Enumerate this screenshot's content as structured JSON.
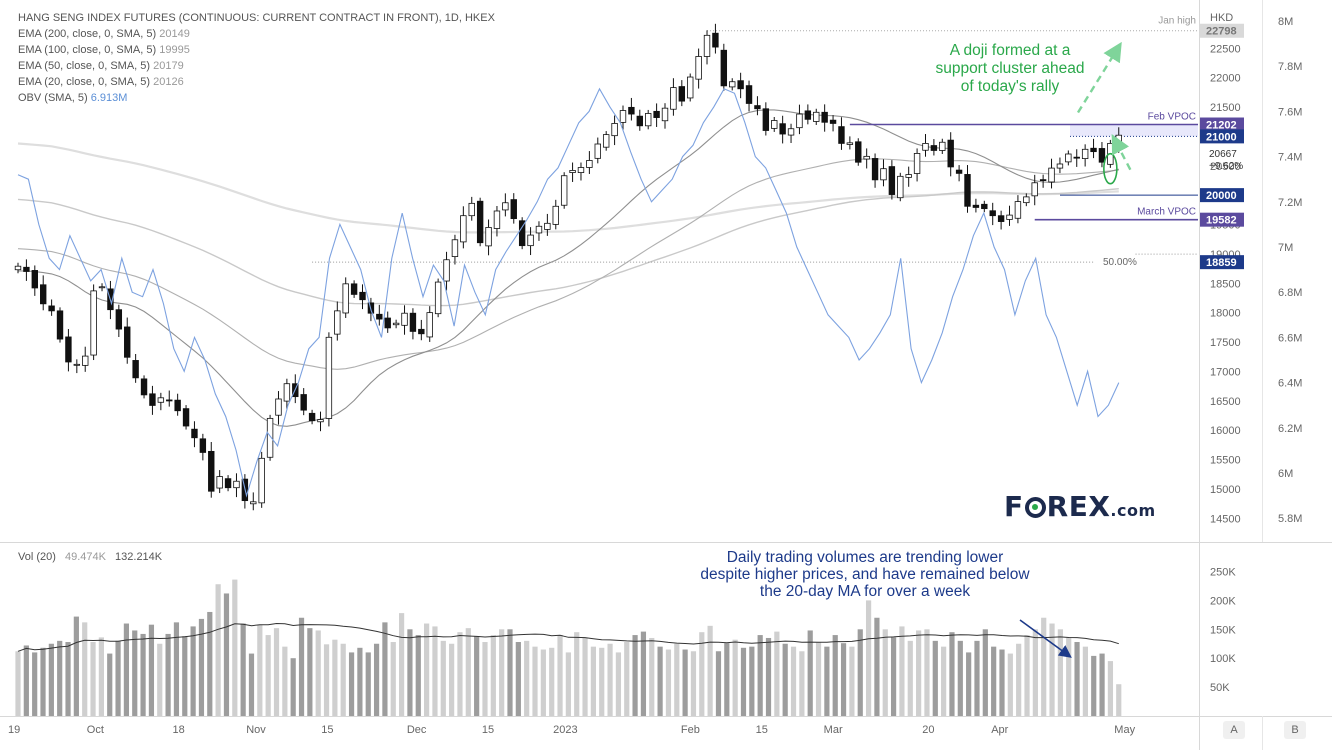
{
  "chart_data": {
    "type": "candlestick",
    "title": "HANG SENG INDEX FUTURES (CONTINUOUS: CURRENT CONTRACT IN FRONT), 1D, HKEX",
    "indicators": [
      {
        "label": "EMA (200, close, 0, SMA, 5)",
        "value": "20149"
      },
      {
        "label": "EMA (100, close, 0, SMA, 5)",
        "value": "19995"
      },
      {
        "label": "EMA (50, close, 0, SMA, 5)",
        "value": "20179"
      },
      {
        "label": "EMA (20, close, 0, SMA, 5)",
        "value": "20126"
      },
      {
        "label": "OBV (SMA, 5)",
        "value": "6.913M",
        "color": "#5b8fd6"
      }
    ],
    "price_axis": {
      "currency": "HKD",
      "ticks": [
        14500,
        15000,
        15500,
        16000,
        16500,
        17000,
        17500,
        18000,
        18500,
        19000,
        19500,
        20000,
        20500,
        21000,
        21500,
        22000,
        22500
      ],
      "tick_labels": [
        "14500",
        "15000",
        "15500",
        "16000",
        "16500",
        "17000",
        "17500",
        "18000",
        "18500",
        "19000",
        "19500",
        "20000",
        "20500",
        "21000",
        "21500",
        "22000",
        "22500"
      ],
      "range": [
        14300,
        23000
      ]
    },
    "obv_axis": {
      "ticks": [
        5.8,
        6.0,
        6.2,
        6.4,
        6.6,
        6.8,
        7.0,
        7.2,
        7.4,
        7.6,
        7.8,
        8.0
      ],
      "tick_labels": [
        "5.8M",
        "6M",
        "6.2M",
        "6.4M",
        "6.6M",
        "6.8M",
        "7M",
        "7.2M",
        "7.4M",
        "7.6M",
        "7.8M",
        "8M"
      ],
      "range": [
        5.73,
        8.0
      ]
    },
    "volume_axis": {
      "tick_labels": [
        "50K",
        "100K",
        "150K",
        "200K",
        "250K"
      ],
      "ticks": [
        50,
        100,
        150,
        200,
        250
      ],
      "range": [
        0,
        275
      ]
    },
    "x_axis": {
      "labels": [
        "19",
        "Oct",
        "18",
        "Nov",
        "15",
        "Dec",
        "15",
        "2023",
        "Feb",
        "15",
        "Mar",
        "20",
        "Apr",
        "May"
      ],
      "bar_index": [
        0,
        13,
        27,
        40,
        52,
        67,
        79,
        92,
        113,
        125,
        137,
        153,
        165,
        186
      ]
    },
    "price_labels": [
      {
        "name": "Jan high",
        "value": 22798,
        "color": "#bbbbbb"
      },
      {
        "name": "Feb VPOC",
        "value": 21202,
        "color": "#5b4a9e"
      },
      {
        "name": "",
        "value": 21000,
        "color": "#1d3a8a"
      },
      {
        "name": "",
        "value": 20667,
        "change": "+9.62%",
        "color": ""
      },
      {
        "name": "",
        "value": 20000,
        "color": "#1d3a8a"
      },
      {
        "name": "March VPOC",
        "value": 19582,
        "color": "#5b4a9e"
      },
      {
        "name": "50.00%",
        "value": 18859,
        "color": "#1d3a8a"
      }
    ],
    "volume_legend": {
      "label": "Vol (20)",
      "v1": "49.474K",
      "v2": "132.214K"
    },
    "annotations": {
      "green": "A doji formed at a support cluster ahead of today's rally",
      "blue": "Daily trading volumes are trending lower despite higher prices, and have remained below the 20-day MA for over a week"
    },
    "closes": [
      18790,
      18700,
      18420,
      18150,
      18030,
      17550,
      17160,
      17120,
      17260,
      18370,
      18440,
      18050,
      17720,
      17240,
      16890,
      16600,
      16420,
      16550,
      16510,
      16330,
      16070,
      15870,
      15620,
      14960,
      15210,
      15020,
      15130,
      14800,
      14780,
      15520,
      16200,
      16530,
      16790,
      16570,
      16340,
      16160,
      16180,
      17580,
      18030,
      18490,
      18310,
      18220,
      17990,
      17890,
      17740,
      17820,
      17990,
      17680,
      17640,
      18000,
      18520,
      18900,
      19240,
      19650,
      19860,
      19190,
      19450,
      19730,
      19870,
      19600,
      19140,
      19320,
      19470,
      19520,
      19810,
      20330,
      20420,
      20470,
      20590,
      20870,
      21030,
      21220,
      21440,
      21380,
      21180,
      21390,
      21320,
      21480,
      21830,
      21600,
      22010,
      22360,
      22720,
      22520,
      21860,
      21930,
      21810,
      21560,
      21470,
      21100,
      21270,
      21040,
      21130,
      21380,
      21290,
      21410,
      21240,
      21220,
      20880,
      20890,
      20560,
      20660,
      20260,
      20450,
      20010,
      20320,
      20350,
      20710,
      20880,
      20760,
      20900,
      20480,
      20370,
      19810,
      19790,
      19770,
      19650,
      19550,
      19660,
      19890,
      19970,
      20210,
      20260,
      20460,
      20530,
      20700,
      20640,
      20780,
      20740,
      20560,
      20880,
      21020
    ],
    "obv": [
      7.32,
      7.3,
      7.1,
      6.95,
      6.9,
      7.05,
      6.95,
      6.85,
      6.9,
      6.75,
      6.95,
      6.8,
      6.78,
      6.9,
      6.75,
      6.55,
      6.45,
      6.6,
      6.5,
      6.35,
      6.25,
      6.1,
      5.9,
      6.05,
      6.18,
      6.12,
      6.3,
      6.4,
      6.55,
      6.6,
      6.95,
      7.1,
      7.0,
      6.9,
      6.72,
      6.6,
      6.95,
      7.15,
      6.95,
      6.78,
      6.92,
      6.85,
      6.65,
      6.92,
      6.8,
      6.7,
      6.9,
      6.98,
      7.05,
      7.12,
      7.2,
      7.3,
      7.35,
      7.45,
      7.55,
      7.6,
      7.7,
      7.62,
      7.55,
      7.42,
      7.3,
      7.2,
      7.25,
      7.3,
      7.4,
      7.45,
      7.55,
      7.62,
      7.7,
      7.68,
      7.55,
      7.4,
      7.35,
      7.25,
      7.15,
      7.0,
      6.9,
      6.8,
      6.7,
      6.65,
      6.6,
      6.5,
      6.55,
      6.62,
      6.7,
      6.95,
      6.55,
      6.4,
      6.5,
      6.62,
      6.78,
      6.9,
      7.05,
      7.15,
      7.0,
      6.9,
      6.7,
      6.85,
      6.95,
      6.7,
      6.6,
      6.45,
      6.3,
      6.45,
      6.25,
      6.3,
      6.4
    ],
    "volumes": [
      112,
      122,
      110,
      118,
      125,
      130,
      128,
      172,
      162,
      128,
      136,
      108,
      130,
      160,
      148,
      142,
      158,
      125,
      142,
      162,
      138,
      155,
      168,
      180,
      228,
      212,
      236,
      160,
      108,
      158,
      140,
      152,
      120,
      100,
      170,
      152,
      148,
      124,
      132,
      125,
      110,
      118,
      110,
      125,
      162,
      128,
      178,
      150,
      140,
      160,
      155,
      130,
      125,
      145,
      152,
      138,
      128,
      140,
      150,
      150,
      128,
      130,
      120,
      115,
      118,
      140,
      110,
      145,
      135,
      120,
      118,
      125,
      110,
      128,
      140,
      146,
      135,
      120,
      115,
      125,
      115,
      112,
      145,
      156,
      112,
      126,
      132,
      118,
      120,
      140,
      135,
      146,
      125,
      120,
      112,
      148,
      128,
      120,
      140,
      126,
      120,
      150,
      200,
      170,
      150,
      136,
      155,
      130,
      148,
      150,
      130,
      120,
      145,
      130,
      110,
      130,
      150,
      120,
      115,
      108,
      125,
      140,
      150,
      170,
      160,
      150,
      135,
      128,
      120,
      104,
      108,
      95,
      55
    ]
  },
  "controls": {
    "a": "A",
    "b": "B"
  }
}
